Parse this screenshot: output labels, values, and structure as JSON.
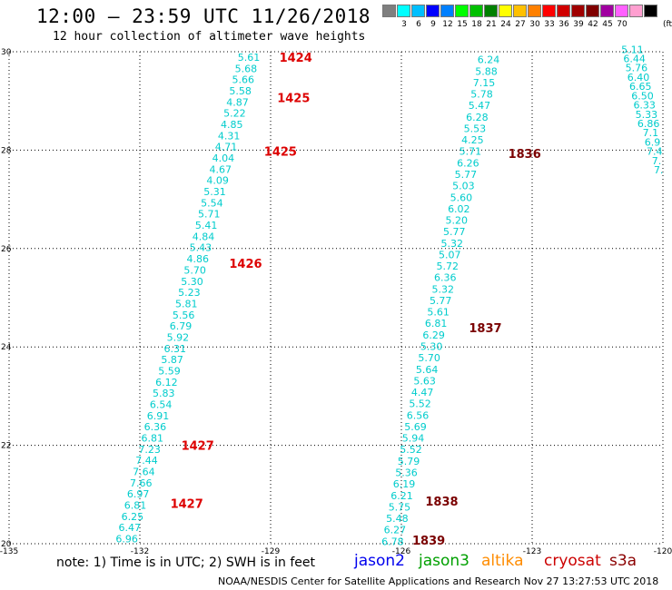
{
  "header": {
    "title": "12:00 – 23:59 UTC 11/26/2018",
    "subtitle": "12 hour collection of altimeter wave heights"
  },
  "colorbar": {
    "colors": [
      "#7f7f7f",
      "#00ffff",
      "#00bfff",
      "#0000ff",
      "#0080ff",
      "#00ff00",
      "#00c000",
      "#008000",
      "#ffff00",
      "#ffc000",
      "#ff8000",
      "#ff0000",
      "#d00000",
      "#a00000",
      "#800000",
      "#a000a0",
      "#ff60ff",
      "#ff9fd0",
      "#000000"
    ],
    "labels": [
      "3",
      "6",
      "9",
      "12",
      "15",
      "18",
      "21",
      "24",
      "27",
      "30",
      "33",
      "36",
      "39",
      "42",
      "45",
      "70"
    ],
    "unit": "(ft)"
  },
  "footer": {
    "note": "note:  1) Time is in UTC;  2) SWH is in feet",
    "satellites": [
      {
        "name": "jason2",
        "color": "#0000ee"
      },
      {
        "name": "jason3",
        "color": "#00a000"
      },
      {
        "name": "altika",
        "color": "#ff8c00"
      },
      {
        "name": "cryosat",
        "color": "#cc0000"
      },
      {
        "name": "s3a",
        "color": "#8b0000"
      }
    ],
    "credit": "NOAA/NESDIS Center for Satellite Applications and Research     Nov 27 13:27:53 UTC 2018"
  },
  "chart_data": {
    "type": "scatter",
    "xlim": [
      -135,
      -120
    ],
    "ylim": [
      20,
      30
    ],
    "x_ticks": [
      "-135",
      "-132",
      "-129",
      "-126",
      "-123",
      "-120"
    ],
    "y_ticks": [
      "20",
      "22",
      "24",
      "26",
      "28",
      "30"
    ],
    "grid": true,
    "point_color": "#00cccc",
    "tracks": [
      {
        "id": "left",
        "values": [
          "5.61",
          "5.68",
          "5.66",
          "5.58",
          "4.87",
          "5.22",
          "4.85",
          "4.31",
          "4.71",
          "4.04",
          "4.67",
          "4.09",
          "5.31",
          "5.54",
          "5.71",
          "5.41",
          "4.84",
          "5.43",
          "4.86",
          "5.70",
          "5.30",
          "5.23",
          "5.81",
          "5.56",
          "6.79",
          "5.92",
          "6.31",
          "5.87",
          "5.59",
          "6.12",
          "5.83",
          "6.54",
          "6.91",
          "6.36",
          "6.81",
          "7.23",
          "7.44",
          "7.64",
          "7.66",
          "6.97",
          "6.81",
          "6.25",
          "6.47",
          "6.96"
        ],
        "lon_top": -129.5,
        "lon_bottom": -132.3,
        "lat_top": 29.89,
        "lat_bottom": 20.1,
        "times": [
          {
            "label": "1424",
            "lat": 29.89,
            "lon": -128.8,
            "color": "#dd0000"
          },
          {
            "label": "1425",
            "lat": 29.07,
            "lon": -128.85,
            "color": "#dd0000"
          },
          {
            "label": "1425",
            "lat": 27.98,
            "lon": -129.15,
            "color": "#dd0000"
          },
          {
            "label": "1426",
            "lat": 25.7,
            "lon": -129.95,
            "color": "#dd0000"
          },
          {
            "label": "1427",
            "lat": 22.0,
            "lon": -131.05,
            "color": "#dd0000"
          },
          {
            "label": "1427",
            "lat": 20.82,
            "lon": -131.3,
            "color": "#dd0000"
          }
        ]
      },
      {
        "id": "middle",
        "values": [
          "6.24",
          "5.88",
          "7.15",
          "5.78",
          "5.47",
          "6.28",
          "5.53",
          "4.25",
          "5.71",
          "6.26",
          "5.77",
          "5.03",
          "5.60",
          "6.02",
          "5.20",
          "5.77",
          "5.32",
          "5.07",
          "5.72",
          "6.36",
          "5.32",
          "5.77",
          "5.61",
          "6.81",
          "6.29",
          "5.30",
          "5.70",
          "5.64",
          "5.63",
          "4.47",
          "5.52",
          "6.56",
          "5.69",
          "5.94",
          "5.52",
          "5.79",
          "5.36",
          "6.19",
          "6.21",
          "5.75",
          "5.48",
          "6.27",
          "6.78"
        ],
        "lon_top": -124.0,
        "lon_bottom": -126.2,
        "lat_top": 29.84,
        "lat_bottom": 20.05,
        "times": [
          {
            "label": "1836",
            "lat": 27.93,
            "lon": -123.55,
            "color": "#7a0000"
          },
          {
            "label": "1837",
            "lat": 24.39,
            "lon": -124.45,
            "color": "#7a0000"
          },
          {
            "label": "1838",
            "lat": 20.87,
            "lon": -125.45,
            "color": "#7a0000"
          },
          {
            "label": "1839",
            "lat": 20.07,
            "lon": -125.75,
            "color": "#7a0000"
          }
        ]
      },
      {
        "id": "right",
        "values": [
          "5.11",
          "6.44",
          "5.76",
          "6.40",
          "6.65",
          "6.50",
          "6.33",
          "5.33",
          "6.86",
          "7.1",
          "6.9",
          "7.4",
          "7.",
          "7."
        ],
        "lon_top": -120.7,
        "lon_bottom": -120.1,
        "lat_top": 30.05,
        "lat_bottom": 27.6,
        "times": []
      }
    ]
  }
}
